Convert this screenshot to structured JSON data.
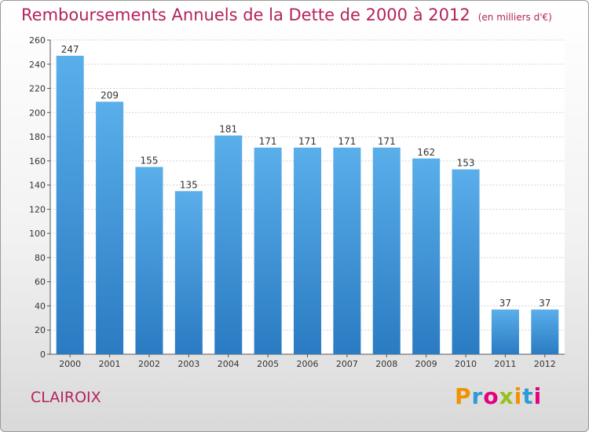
{
  "header": {
    "title": "Remboursements Annuels de la Dette de 2000 à 2012",
    "unit": "(en milliers d'€)"
  },
  "footer": {
    "city": "CLAIROIX",
    "logo": "Proxiti"
  },
  "colors": {
    "bar_top": "#5aaeea",
    "bar_bottom": "#2a7bc2",
    "title": "#b4235d",
    "logo": [
      "#f39200",
      "#2e9bd6",
      "#e5007d",
      "#95c11f",
      "#f39200",
      "#2e9bd6",
      "#e5007d"
    ]
  },
  "chart_data": {
    "type": "bar",
    "title": "Remboursements Annuels de la Dette de 2000 à 2012",
    "xlabel": "",
    "ylabel": "",
    "categories": [
      "2000",
      "2001",
      "2002",
      "2003",
      "2004",
      "2005",
      "2006",
      "2007",
      "2008",
      "2009",
      "2010",
      "2011",
      "2012"
    ],
    "values": [
      247,
      209,
      155,
      135,
      181,
      171,
      171,
      171,
      171,
      162,
      153,
      37,
      37
    ],
    "ylim": [
      0,
      260
    ],
    "yticks": [
      0,
      20,
      40,
      60,
      80,
      100,
      120,
      140,
      160,
      180,
      200,
      220,
      240,
      260
    ],
    "grid": true,
    "legend": "none"
  }
}
